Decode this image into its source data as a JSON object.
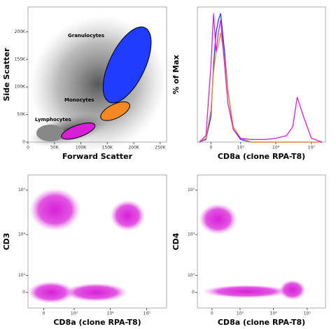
{
  "chart_data": [
    {
      "type": "scatter",
      "x_label": "Forward Scatter",
      "y_label": "Side Scatter",
      "xscale": "linear",
      "yscale": "linear",
      "xlim": [
        0,
        262144
      ],
      "ylim": [
        0,
        245000
      ],
      "xticks": [
        0,
        {
          "value": 50000,
          "label": "50K"
        },
        {
          "value": 100000,
          "label": "100K"
        },
        {
          "value": 150000,
          "label": "150K"
        },
        {
          "value": 200000,
          "label": "200K"
        },
        {
          "value": 250000,
          "label": "250K"
        }
      ],
      "yticks": [
        0,
        {
          "value": 50000,
          "label": "50K"
        },
        {
          "value": 100000,
          "label": "100K"
        },
        {
          "value": 150000,
          "label": "150K"
        },
        {
          "value": 200000,
          "label": "200K"
        }
      ],
      "populations": [
        {
          "name": "Granulocytes",
          "color": "#1f3cff",
          "x_range": [
            150000,
            225000
          ],
          "y_range": [
            65000,
            215000
          ]
        },
        {
          "name": "Monocytes",
          "color": "#f5891f",
          "x_range": [
            135000,
            195000
          ],
          "y_range": [
            42000,
            70000
          ]
        },
        {
          "name": "Lymphocytes",
          "color": "#d81fd8",
          "x_range": [
            60000,
            130000
          ],
          "y_range": [
            8000,
            32000
          ]
        }
      ]
    },
    {
      "type": "line",
      "x_label": "CD8a (clone RPA-T8)",
      "y_label": "% of Max",
      "xscale": "biexponential",
      "yscale": "linear",
      "xlim": [
        -300,
        250000
      ],
      "ylim": [
        0,
        105
      ],
      "xticks": [
        0,
        {
          "value": 1000,
          "label": "10³"
        },
        {
          "value": 10000,
          "label": "10⁴"
        },
        {
          "value": 100000,
          "label": "10⁵"
        }
      ],
      "x": [
        -250,
        -100,
        0,
        50,
        100,
        150,
        200,
        300,
        400,
        600,
        1000,
        2000,
        5000,
        10000,
        20000,
        30000,
        40000,
        60000,
        100000,
        200000
      ],
      "series": [
        {
          "color": "#1f3cff",
          "values": [
            0,
            2,
            20,
            60,
            85,
            95,
            100,
            70,
            40,
            10,
            2,
            0,
            0,
            0,
            0,
            0,
            0,
            0,
            0,
            0
          ]
        },
        {
          "color": "#f5891f",
          "values": [
            0,
            3,
            25,
            55,
            70,
            75,
            85,
            65,
            40,
            12,
            3,
            0,
            0,
            0,
            0,
            0,
            0,
            0,
            0,
            0
          ]
        },
        {
          "color": "#d81fd8",
          "values": [
            0,
            5,
            60,
            100,
            70,
            85,
            95,
            60,
            30,
            10,
            3,
            2,
            2,
            3,
            5,
            12,
            35,
            20,
            3,
            0
          ]
        }
      ]
    },
    {
      "type": "scatter",
      "x_label": "CD8a (clone RPA-T8)",
      "y_label": "CD3",
      "xscale": "biexponential",
      "yscale": "biexponential",
      "xlim": [
        -350,
        350000
      ],
      "ylim": [
        -900,
        220000
      ],
      "color": "#d81fd8",
      "xticks": [
        0,
        {
          "value": 1000,
          "label": "10³"
        },
        {
          "value": 10000,
          "label": "10⁴"
        },
        {
          "value": 100000,
          "label": "10⁵"
        }
      ],
      "yticks": [
        0,
        {
          "value": 1000,
          "label": "10³"
        },
        {
          "value": 10000,
          "label": "10⁴"
        },
        {
          "value": 100000,
          "label": "10⁵"
        }
      ],
      "populations": [
        {
          "x_range": [
            -300,
            1500
          ],
          "y_range": [
            12000,
            110000
          ]
        },
        {
          "x_range": [
            10000,
            90000
          ],
          "y_range": [
            12000,
            60000
          ]
        },
        {
          "x_range": [
            -350,
            1000
          ],
          "y_range": [
            -600,
            600
          ]
        },
        {
          "x_range": [
            500,
            30000
          ],
          "y_range": [
            -500,
            500
          ]
        }
      ]
    },
    {
      "type": "scatter",
      "x_label": "CD8a (clone RPA-T8)",
      "y_label": "CD4",
      "xscale": "biexponential",
      "yscale": "biexponential",
      "xlim": [
        -350,
        350000
      ],
      "ylim": [
        -900,
        220000
      ],
      "color": "#d81fd8",
      "xticks": [
        0,
        {
          "value": 1000,
          "label": "10³"
        },
        {
          "value": 10000,
          "label": "10⁴"
        },
        {
          "value": 100000,
          "label": "10⁵"
        }
      ],
      "yticks": [
        0,
        {
          "value": 1000,
          "label": "10³"
        },
        {
          "value": 10000,
          "label": "10⁴"
        },
        {
          "value": 100000,
          "label": "10⁵"
        }
      ],
      "populations": [
        {
          "x_range": [
            -300,
            800
          ],
          "y_range": [
            10000,
            50000
          ]
        },
        {
          "x_range": [
            -200,
            30000
          ],
          "y_range": [
            -300,
            400
          ]
        },
        {
          "x_range": [
            15000,
            90000
          ],
          "y_range": [
            -400,
            700
          ]
        }
      ]
    }
  ]
}
